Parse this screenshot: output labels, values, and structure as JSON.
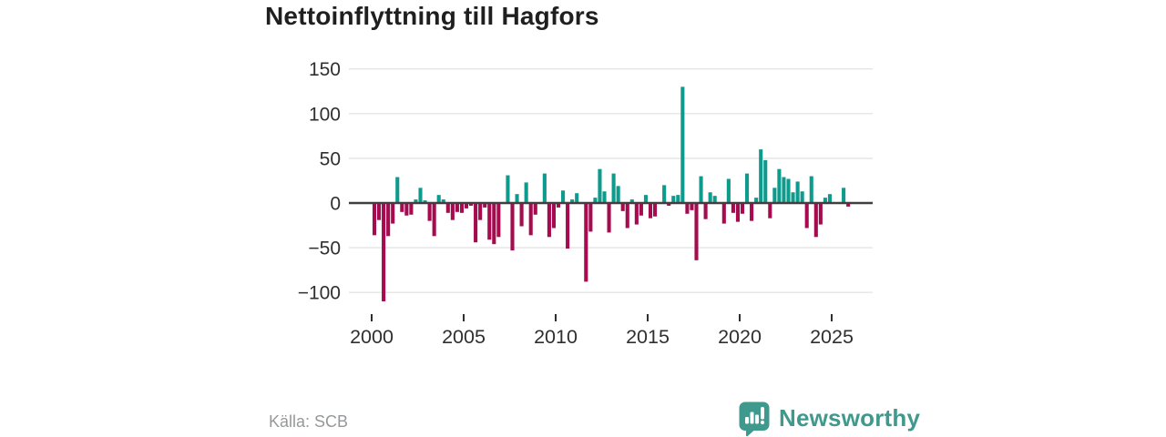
{
  "header": {
    "title": "Nettoinflyttning till Hagfors"
  },
  "footer": {
    "source": "Källa: SCB",
    "brand": "Newsworthy"
  },
  "icons": {
    "brand_logo": "speech-bubble-with-bar-chart-and-exclamation-icon"
  },
  "colors": {
    "positive": "#0e9b8d",
    "negative": "#a50b4e",
    "grid": "#e4e4e4",
    "zero_line": "#3f3f3f",
    "axis_text": "#2f2f2f",
    "title_text": "#1f1f1f",
    "source_text": "#95989a",
    "brand_teal": "#3f998c",
    "background": "#ffffff"
  },
  "chart_data": {
    "type": "bar",
    "title": "Nettoinflyttning till Hagfors",
    "xlabel": "",
    "ylabel": "",
    "frequency": "quarterly",
    "legend": "none",
    "grid": "horizontal",
    "ylim": [
      -120,
      155
    ],
    "y_ticks": [
      150,
      100,
      50,
      0,
      -50,
      -100
    ],
    "x_tick_labels": [
      "2000",
      "2005",
      "2010",
      "2015",
      "2020",
      "2025"
    ],
    "x": [
      "2000Q1",
      "2000Q2",
      "2000Q3",
      "2000Q4",
      "2001Q1",
      "2001Q2",
      "2001Q3",
      "2001Q4",
      "2002Q1",
      "2002Q2",
      "2002Q3",
      "2002Q4",
      "2003Q1",
      "2003Q2",
      "2003Q3",
      "2003Q4",
      "2004Q1",
      "2004Q2",
      "2004Q3",
      "2004Q4",
      "2005Q1",
      "2005Q2",
      "2005Q3",
      "2005Q4",
      "2006Q1",
      "2006Q2",
      "2006Q3",
      "2006Q4",
      "2007Q1",
      "2007Q2",
      "2007Q3",
      "2007Q4",
      "2008Q1",
      "2008Q2",
      "2008Q3",
      "2008Q4",
      "2009Q1",
      "2009Q2",
      "2009Q3",
      "2009Q4",
      "2010Q1",
      "2010Q2",
      "2010Q3",
      "2010Q4",
      "2011Q1",
      "2011Q2",
      "2011Q3",
      "2011Q4",
      "2012Q1",
      "2012Q2",
      "2012Q3",
      "2012Q4",
      "2013Q1",
      "2013Q2",
      "2013Q3",
      "2013Q4",
      "2014Q1",
      "2014Q2",
      "2014Q3",
      "2014Q4",
      "2015Q1",
      "2015Q2",
      "2015Q3",
      "2015Q4",
      "2016Q1",
      "2016Q2",
      "2016Q3",
      "2016Q4",
      "2017Q1",
      "2017Q2",
      "2017Q3",
      "2017Q4",
      "2018Q1",
      "2018Q2",
      "2018Q3",
      "2018Q4",
      "2019Q1",
      "2019Q2",
      "2019Q3",
      "2019Q4",
      "2020Q1",
      "2020Q2",
      "2020Q3",
      "2020Q4",
      "2021Q1",
      "2021Q2",
      "2021Q3",
      "2021Q4",
      "2022Q1",
      "2022Q2",
      "2022Q3",
      "2022Q4",
      "2023Q1",
      "2023Q2",
      "2023Q3",
      "2023Q4",
      "2024Q1",
      "2024Q2",
      "2024Q3",
      "2024Q4",
      "2025Q1",
      "2025Q2",
      "2025Q3",
      "2025Q4"
    ],
    "values": [
      -36,
      -19,
      -110,
      -37,
      -23,
      29,
      -10,
      -14,
      -13,
      4,
      17,
      3,
      -20,
      -37,
      9,
      4,
      -11,
      -19,
      -10,
      -11,
      -6,
      -3,
      -44,
      -19,
      -5,
      -41,
      -46,
      -38,
      0,
      31,
      -53,
      10,
      -26,
      23,
      -36,
      -13,
      0,
      33,
      -38,
      -28,
      -5,
      14,
      -51,
      4,
      11,
      0,
      -88,
      -32,
      6,
      38,
      13,
      -33,
      33,
      19,
      -9,
      -28,
      4,
      -24,
      -14,
      9,
      -17,
      -15,
      0,
      20,
      -3,
      8,
      9,
      130,
      -12,
      -8,
      -64,
      30,
      -18,
      12,
      8,
      0,
      -23,
      27,
      -11,
      -21,
      -12,
      33,
      -20,
      6,
      60,
      48,
      -17,
      17,
      38,
      29,
      27,
      12,
      24,
      13,
      -28,
      30,
      -38,
      -24,
      6,
      10,
      0,
      0,
      17,
      -4
    ]
  }
}
